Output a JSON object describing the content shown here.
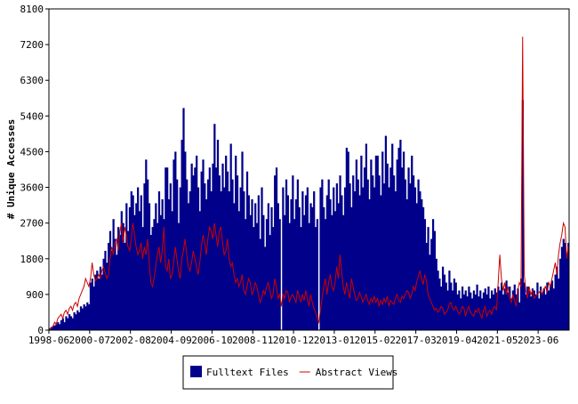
{
  "chart_data": {
    "type": "bar",
    "y_label": "# Unique Accesses",
    "ylim": [
      0,
      8100
    ],
    "yticks": [
      0,
      900,
      1800,
      2700,
      3600,
      4500,
      5400,
      6300,
      7200,
      8100
    ],
    "legend": "bottom",
    "categories": [
      "1998-06",
      null,
      null,
      null,
      null,
      null,
      null,
      null,
      null,
      null,
      null,
      null,
      null,
      null,
      null,
      null,
      null,
      null,
      null,
      null,
      null,
      null,
      null,
      null,
      null,
      "2000-07",
      null,
      null,
      null,
      null,
      null,
      null,
      null,
      null,
      null,
      null,
      null,
      null,
      null,
      null,
      null,
      null,
      null,
      null,
      null,
      null,
      null,
      null,
      null,
      null,
      "2002-08",
      null,
      null,
      null,
      null,
      null,
      null,
      null,
      null,
      null,
      null,
      null,
      null,
      null,
      null,
      null,
      null,
      null,
      null,
      null,
      null,
      null,
      null,
      null,
      null,
      "2004-09",
      null,
      null,
      null,
      null,
      null,
      null,
      null,
      null,
      null,
      null,
      null,
      null,
      null,
      null,
      null,
      null,
      null,
      null,
      null,
      null,
      null,
      null,
      null,
      null,
      "2006-10",
      null,
      null,
      null,
      null,
      null,
      null,
      null,
      null,
      null,
      null,
      null,
      null,
      null,
      null,
      null,
      null,
      null,
      null,
      null,
      null,
      null,
      null,
      null,
      null,
      "2008-11",
      null,
      null,
      null,
      null,
      null,
      null,
      null,
      null,
      null,
      null,
      null,
      null,
      null,
      null,
      null,
      null,
      null,
      null,
      null,
      null,
      null,
      null,
      null,
      null,
      "2010-12",
      null,
      null,
      null,
      null,
      null,
      null,
      null,
      null,
      null,
      null,
      null,
      null,
      null,
      null,
      null,
      null,
      null,
      null,
      null,
      null,
      null,
      null,
      null,
      null,
      "2013-01",
      null,
      null,
      null,
      null,
      null,
      null,
      null,
      null,
      null,
      null,
      null,
      null,
      null,
      null,
      null,
      null,
      null,
      null,
      null,
      null,
      null,
      null,
      null,
      null,
      "2015-02",
      null,
      null,
      null,
      null,
      null,
      null,
      null,
      null,
      null,
      null,
      null,
      null,
      null,
      null,
      null,
      null,
      null,
      null,
      null,
      null,
      null,
      null,
      null,
      null,
      "2017-03",
      null,
      null,
      null,
      null,
      null,
      null,
      null,
      null,
      null,
      null,
      null,
      null,
      null,
      null,
      null,
      null,
      null,
      null,
      null,
      null,
      null,
      null,
      null,
      null,
      "2019-04",
      null,
      null,
      null,
      null,
      null,
      null,
      null,
      null,
      null,
      null,
      null,
      null,
      null,
      null,
      null,
      null,
      null,
      null,
      null,
      null,
      null,
      null,
      null,
      null,
      "2021-05",
      null,
      null,
      null,
      null,
      null,
      null,
      null,
      null,
      null,
      null,
      null,
      null,
      null,
      null,
      null,
      null,
      null,
      null,
      null,
      null,
      null,
      null,
      null,
      null,
      "2023-06",
      null,
      null,
      null,
      null,
      null,
      null,
      null,
      null,
      null,
      null,
      null,
      null,
      null,
      null,
      null,
      null,
      null,
      null
    ],
    "series": [
      {
        "name": "Fulltext Files",
        "type": "bar",
        "color": "#00008b",
        "values": [
          50,
          80,
          100,
          120,
          150,
          200,
          150,
          250,
          300,
          200,
          350,
          300,
          400,
          350,
          300,
          450,
          400,
          500,
          450,
          600,
          550,
          650,
          600,
          700,
          650,
          1200,
          1300,
          1100,
          1400,
          1500,
          1300,
          1600,
          1400,
          1800,
          2000,
          1700,
          2200,
          2500,
          2000,
          2800,
          2300,
          1900,
          2600,
          2400,
          3000,
          2700,
          2200,
          3200,
          2500,
          3100,
          3500,
          3400,
          2900,
          3200,
          3600,
          3000,
          3400,
          2600,
          3700,
          4300,
          3800,
          3200,
          2400,
          2600,
          2800,
          3200,
          2700,
          3500,
          2900,
          3300,
          2800,
          4100,
          4100,
          3300,
          3700,
          3000,
          4300,
          4500,
          3800,
          2700,
          3600,
          4800,
          5600,
          4500,
          3800,
          3200,
          3500,
          4200,
          3900,
          4100,
          4400,
          3600,
          3000,
          4000,
          4300,
          3700,
          3300,
          3800,
          4100,
          3500,
          4200,
          5200,
          4100,
          4800,
          3900,
          3500,
          4200,
          3600,
          4400,
          4000,
          3500,
          4700,
          3800,
          3200,
          4400,
          3900,
          3000,
          3600,
          4500,
          3500,
          2800,
          4000,
          3400,
          2900,
          3300,
          2600,
          3200,
          2700,
          3400,
          2300,
          3600,
          2900,
          2100,
          2800,
          3200,
          2400,
          3100,
          2600,
          3900,
          4100,
          3200,
          2800,
          0,
          3600,
          2900,
          3800,
          3400,
          2700,
          3300,
          3900,
          2800,
          3300,
          3800,
          3100,
          2600,
          3500,
          2900,
          3400,
          3600,
          2700,
          3200,
          3100,
          3500,
          2600,
          2800,
          0,
          3600,
          3800,
          3100,
          2800,
          3400,
          3800,
          3300,
          2900,
          3600,
          3000,
          3700,
          3200,
          3900,
          3400,
          2900,
          3600,
          4600,
          4500,
          3700,
          3100,
          3900,
          3500,
          4300,
          3800,
          3400,
          4400,
          3600,
          4100,
          4700,
          3800,
          3300,
          4300,
          3900,
          3600,
          4400,
          4400,
          3900,
          3400,
          4500,
          3700,
          4900,
          4200,
          3600,
          4100,
          4700,
          3900,
          3500,
          4300,
          4600,
          4800,
          4100,
          4500,
          3800,
          3300,
          4100,
          3700,
          4400,
          3900,
          3600,
          3200,
          3800,
          3500,
          3300,
          3100,
          2800,
          2200,
          2600,
          1900,
          2300,
          2800,
          2500,
          1800,
          1500,
          1300,
          1100,
          1600,
          1400,
          1200,
          1000,
          1500,
          1200,
          1000,
          1300,
          1200,
          900,
          1000,
          800,
          1100,
          900,
          1000,
          850,
          1100,
          950,
          800,
          1000,
          900,
          1150,
          850,
          1000,
          800,
          950,
          1050,
          900,
          1100,
          800,
          1000,
          900,
          1050,
          950,
          1100,
          1000,
          1200,
          900,
          1050,
          1250,
          950,
          1100,
          800,
          1000,
          1150,
          900,
          1050,
          700,
          1300,
          5800,
          1200,
          900,
          1100,
          1000,
          850,
          1050,
          1000,
          900,
          1200,
          800,
          1100,
          950,
          1050,
          900,
          1200,
          1000,
          1150,
          1250,
          1050,
          1400,
          1600,
          1300,
          1800,
          2100,
          2300,
          2200,
          1900,
          2200
        ]
      },
      {
        "name": "Abstract Views",
        "type": "line",
        "color": "#cc0000",
        "values": [
          20,
          50,
          100,
          200,
          150,
          300,
          350,
          400,
          300,
          450,
          500,
          400,
          550,
          600,
          500,
          650,
          700,
          600,
          800,
          900,
          1000,
          1100,
          1300,
          1200,
          1100,
          1300,
          1700,
          1400,
          1250,
          1300,
          1400,
          1300,
          1500,
          1600,
          1450,
          1300,
          1400,
          1800,
          2100,
          1900,
          2200,
          2300,
          2000,
          2500,
          2700,
          2200,
          2600,
          2400,
          2100,
          2000,
          2300,
          2700,
          2400,
          2100,
          1900,
          2000,
          2200,
          1800,
          2100,
          1900,
          2300,
          1700,
          1200,
          1100,
          1300,
          1600,
          1900,
          2100,
          1700,
          2000,
          2600,
          1600,
          1500,
          1800,
          1300,
          1400,
          1700,
          2100,
          1800,
          1500,
          1300,
          1800,
          2000,
          2300,
          1900,
          1600,
          1500,
          1700,
          2000,
          1800,
          1600,
          1400,
          1700,
          2100,
          2400,
          2200,
          1900,
          2300,
          2600,
          2500,
          2300,
          2700,
          2400,
          2100,
          2500,
          2600,
          2200,
          1900,
          2000,
          2300,
          1800,
          1600,
          1700,
          1400,
          1200,
          1300,
          1100,
          1200,
          1400,
          1000,
          900,
          1100,
          1300,
          1200,
          900,
          1000,
          1200,
          1100,
          900,
          700,
          800,
          1000,
          900,
          1100,
          1200,
          1000,
          800,
          900,
          1300,
          1100,
          800,
          900,
          600,
          900,
          800,
          1000,
          950,
          700,
          850,
          900,
          800,
          700,
          1000,
          850,
          700,
          900,
          750,
          1000,
          800,
          600,
          900,
          700,
          550,
          450,
          300,
          200,
          500,
          800,
          1100,
          1300,
          900,
          1200,
          1400,
          1100,
          1000,
          1200,
          1600,
          1300,
          1900,
          1500,
          1100,
          900,
          1200,
          1000,
          800,
          1300,
          1100,
          900,
          750,
          800,
          950,
          850,
          700,
          800,
          900,
          750,
          650,
          800,
          700,
          850,
          700,
          800,
          600,
          750,
          650,
          800,
          700,
          850,
          600,
          750,
          700,
          650,
          800,
          900,
          750,
          700,
          850,
          800,
          900,
          1000,
          950,
          800,
          900,
          1100,
          1000,
          1200,
          1350,
          1500,
          1300,
          1150,
          1400,
          1250,
          900,
          800,
          700,
          600,
          500,
          550,
          450,
          500,
          600,
          550,
          400,
          450,
          500,
          650,
          700,
          550,
          500,
          600,
          500,
          400,
          450,
          600,
          550,
          350,
          500,
          600,
          450,
          400,
          350,
          500,
          450,
          550,
          400,
          300,
          500,
          600,
          350,
          450,
          500,
          400,
          550,
          600,
          500,
          1200,
          1900,
          1300,
          1000,
          1200,
          900,
          1100,
          800,
          700,
          900,
          750,
          600,
          1000,
          1200,
          1100,
          7400,
          1400,
          1000,
          800,
          1100,
          900,
          1000,
          800,
          850,
          900,
          950,
          1000,
          900,
          1050,
          1100,
          950,
          1200,
          1100,
          1300,
          1500,
          1700,
          1400,
          1900,
          2200,
          2400,
          2700,
          2600,
          1800,
          2100
        ]
      }
    ]
  }
}
